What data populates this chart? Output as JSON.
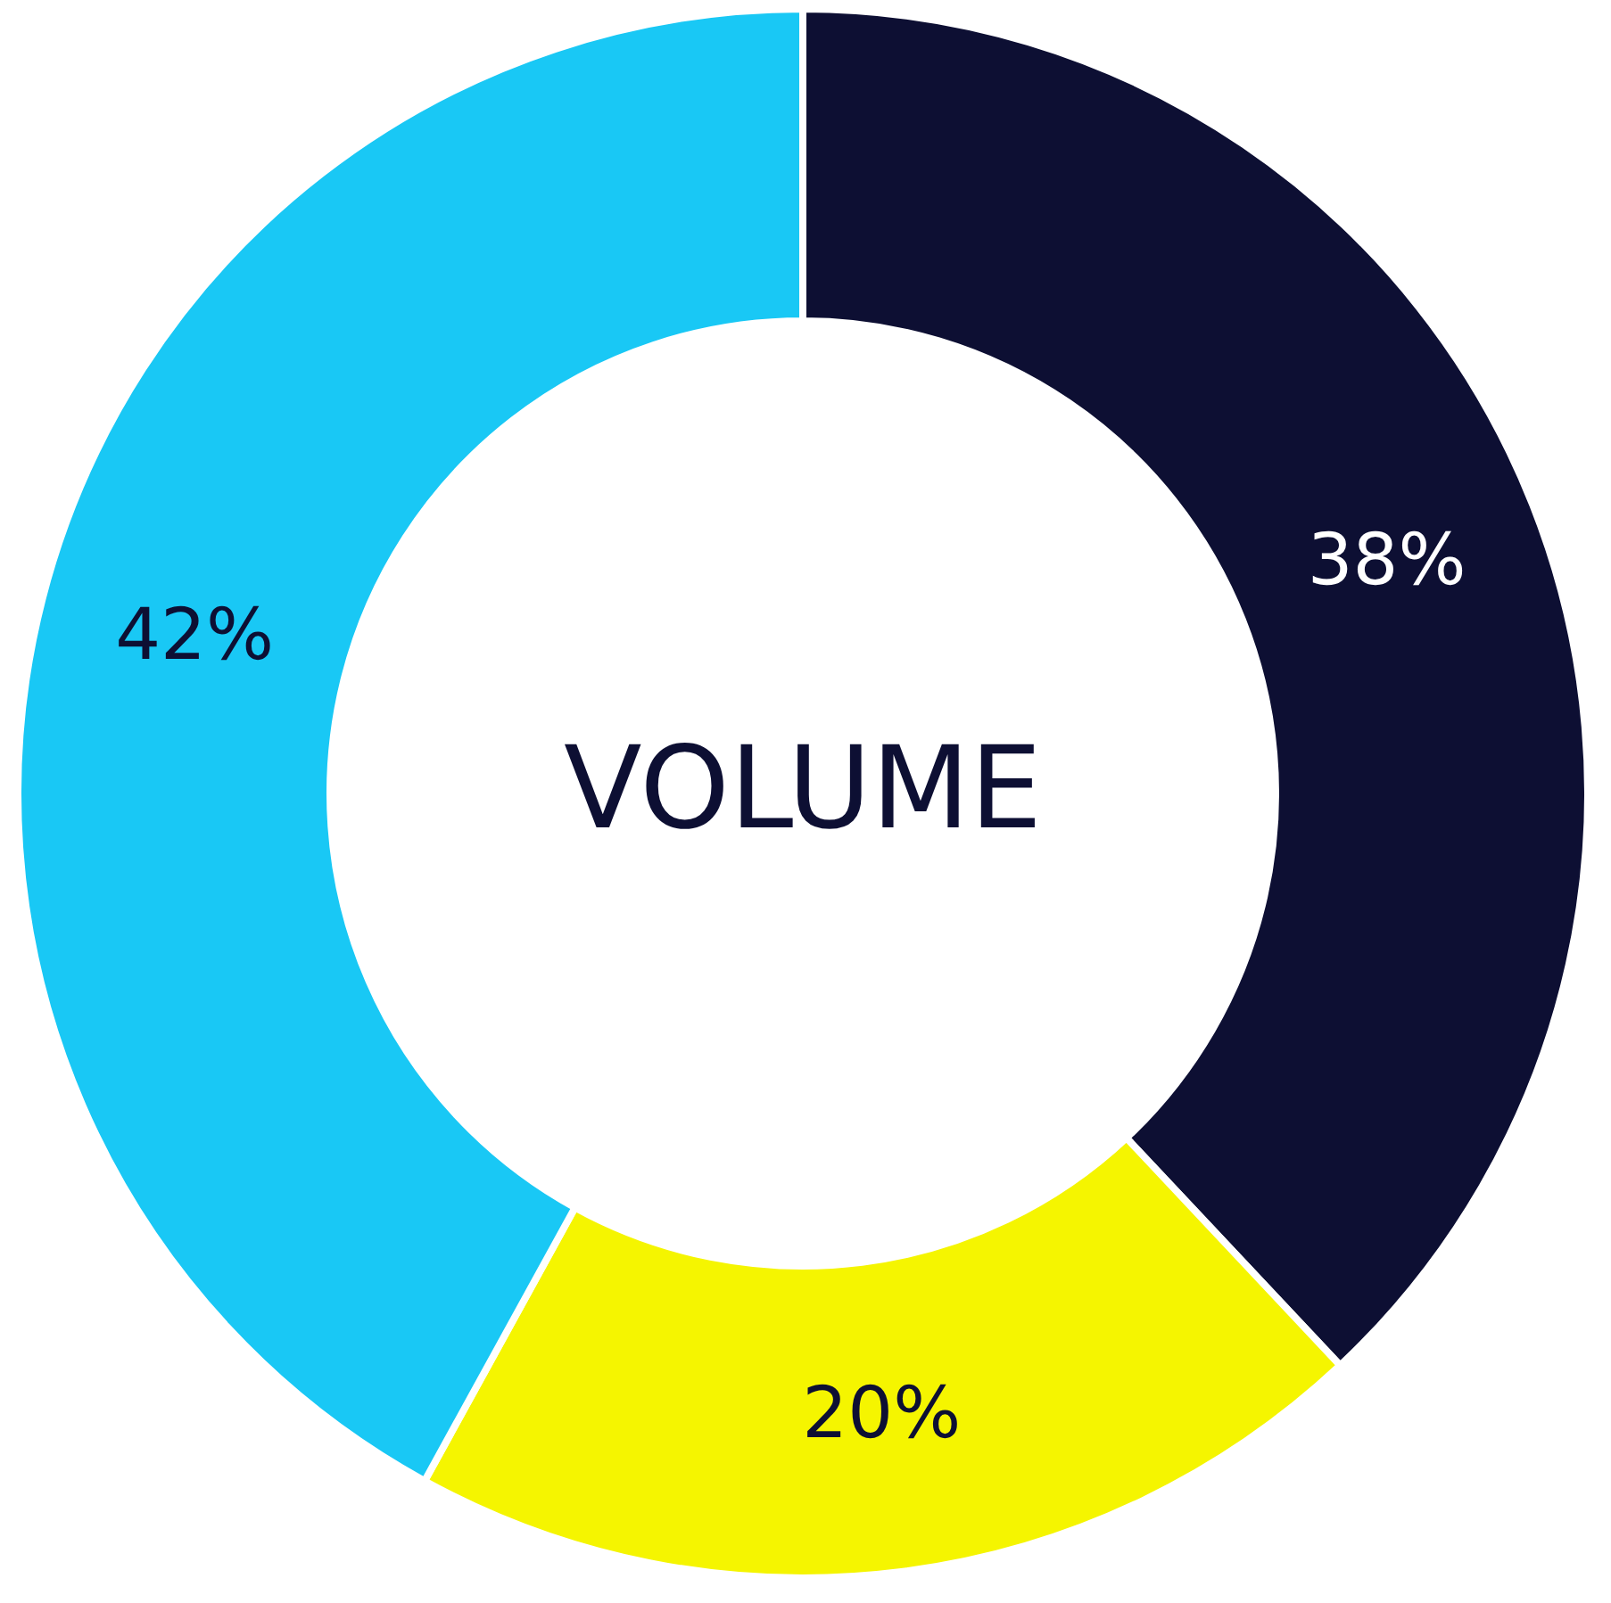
{
  "chart_data": {
    "type": "donut",
    "title": "VOLUME",
    "categories": [
      null,
      null,
      null
    ],
    "values": [
      38,
      20,
      42
    ],
    "value_labels": [
      "38%",
      "20%",
      "42%"
    ],
    "colors": [
      "#0d0f33",
      "#f5f500",
      "#19c8f5"
    ]
  }
}
